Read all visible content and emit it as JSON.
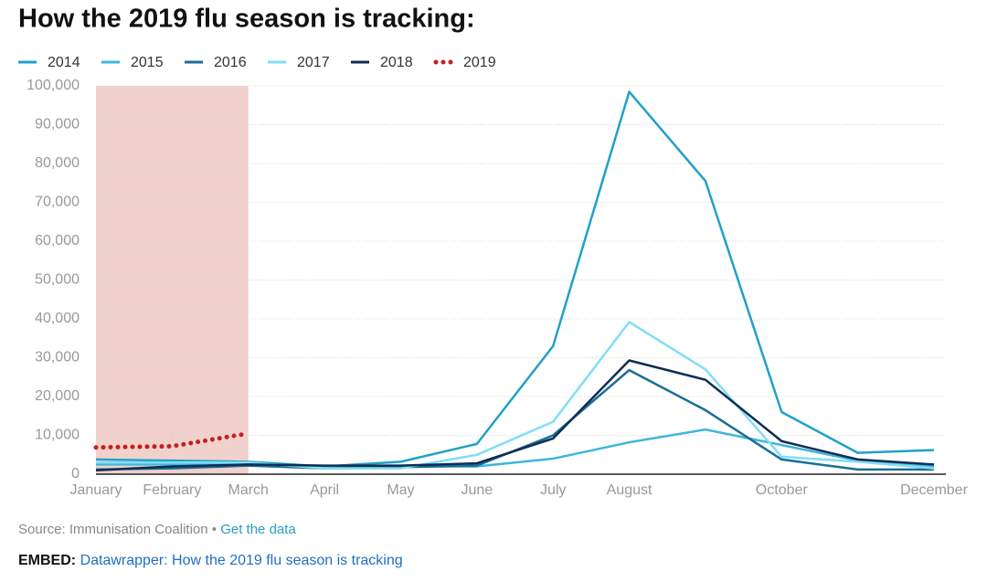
{
  "chart_data": {
    "type": "line",
    "title": "How the 2019 flu season is tracking:",
    "categories": [
      "January",
      "February",
      "March",
      "April",
      "May",
      "June",
      "July",
      "August",
      null,
      "October",
      null,
      "December"
    ],
    "series": [
      {
        "name": "2014",
        "color": "#21a0c8",
        "values": [
          3800,
          3500,
          3200,
          2000,
          3200,
          7800,
          33000,
          98500,
          75500,
          16000,
          5500,
          6200
        ]
      },
      {
        "name": "2015",
        "color": "#3fb6dc",
        "values": [
          2500,
          2500,
          2500,
          2000,
          2000,
          2000,
          4000,
          8200,
          11500,
          7500,
          3500,
          2000
        ]
      },
      {
        "name": "2016",
        "color": "#1b6d98",
        "values": [
          1200,
          1500,
          2200,
          1500,
          1800,
          2200,
          10000,
          26800,
          16500,
          3800,
          1200,
          1200
        ]
      },
      {
        "name": "2017",
        "color": "#80def6",
        "values": [
          3000,
          3000,
          3000,
          1500,
          1500,
          5000,
          13500,
          39200,
          27000,
          4500,
          3200,
          1500
        ]
      },
      {
        "name": "2018",
        "color": "#0f2d52",
        "values": [
          1000,
          2000,
          2500,
          2200,
          2200,
          2800,
          9200,
          29300,
          24300,
          8500,
          3800,
          2500
        ]
      },
      {
        "name": "2019",
        "color": "#c41f1f",
        "style": "dotted",
        "values": [
          6900,
          7200,
          10500,
          null,
          null,
          null,
          null,
          null,
          null,
          null,
          null,
          null
        ]
      }
    ],
    "ylim": [
      0,
      100000
    ],
    "yticks": [
      0,
      {
        "value": 10000,
        "label": "10,000"
      },
      {
        "value": 20000,
        "label": "20,000"
      },
      {
        "value": 30000,
        "label": "30,000"
      },
      {
        "value": 40000,
        "label": "40,000"
      },
      {
        "value": 50000,
        "label": "50,000"
      },
      {
        "value": 60000,
        "label": "60,000"
      },
      {
        "value": 70000,
        "label": "70,000"
      },
      {
        "value": 80000,
        "label": "80,000"
      },
      {
        "value": 90000,
        "label": "90,000"
      },
      {
        "value": 100000,
        "label": "100,000"
      }
    ],
    "grid": true
  },
  "source": "Source: Immunisation Coalition •",
  "source_link": "Get the data",
  "embed_label": "EMBED:",
  "embed_link": "Datawrapper: How the 2019 flu season is tracking"
}
